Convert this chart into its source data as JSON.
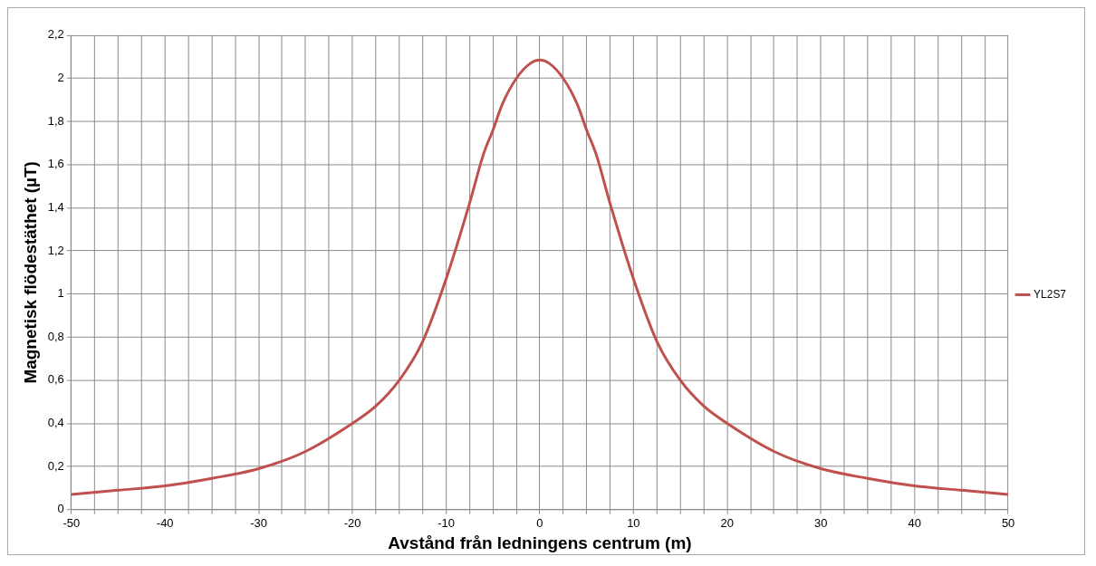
{
  "chart_data": {
    "type": "line",
    "xlabel": "Avstånd från ledningens centrum (m)",
    "ylabel": "Magnetisk flödestäthet (µT)",
    "series": [
      {
        "name": "YL2S7",
        "color": "#c0504d",
        "x": [
          -50,
          -45,
          -40,
          -35,
          -30,
          -25,
          -20,
          -17.5,
          -15,
          -12.5,
          -10,
          -7.5,
          -6,
          -5,
          -4,
          -2.5,
          -1,
          0,
          1,
          2.5,
          4,
          5,
          6,
          7.5,
          10,
          12.5,
          15,
          17.5,
          20,
          25,
          30,
          35,
          40,
          45,
          50
        ],
        "values": [
          0.07,
          0.09,
          0.11,
          0.145,
          0.19,
          0.27,
          0.4,
          0.48,
          0.6,
          0.78,
          1.07,
          1.42,
          1.65,
          1.76,
          1.88,
          2.0,
          2.07,
          2.085,
          2.07,
          2.0,
          1.88,
          1.76,
          1.65,
          1.42,
          1.07,
          0.78,
          0.6,
          0.48,
          0.4,
          0.27,
          0.19,
          0.145,
          0.11,
          0.09,
          0.07
        ]
      }
    ],
    "xlim": [
      -50,
      50
    ],
    "xticks": [
      -50,
      {
        "value": -47.5,
        "label": null
      },
      {
        "value": -45,
        "label": null
      },
      {
        "value": -42.5,
        "label": null
      },
      -40,
      {
        "value": -37.5,
        "label": null
      },
      {
        "value": -35,
        "label": null
      },
      {
        "value": -32.5,
        "label": null
      },
      -30,
      {
        "value": -27.5,
        "label": null
      },
      {
        "value": -25,
        "label": null
      },
      {
        "value": -22.5,
        "label": null
      },
      -20,
      {
        "value": -17.5,
        "label": null
      },
      {
        "value": -15,
        "label": null
      },
      {
        "value": -12.5,
        "label": null
      },
      -10,
      {
        "value": -7.5,
        "label": null
      },
      {
        "value": -5,
        "label": null
      },
      {
        "value": -2.5,
        "label": null
      },
      0,
      {
        "value": 2.5,
        "label": null
      },
      {
        "value": 5,
        "label": null
      },
      {
        "value": 7.5,
        "label": null
      },
      10,
      {
        "value": 12.5,
        "label": null
      },
      {
        "value": 15,
        "label": null
      },
      {
        "value": 17.5,
        "label": null
      },
      20,
      {
        "value": 22.5,
        "label": null
      },
      {
        "value": 25,
        "label": null
      },
      {
        "value": 27.5,
        "label": null
      },
      30,
      {
        "value": 32.5,
        "label": null
      },
      {
        "value": 35,
        "label": null
      },
      {
        "value": 37.5,
        "label": null
      },
      40,
      {
        "value": 42.5,
        "label": null
      },
      {
        "value": 45,
        "label": null
      },
      {
        "value": 47.5,
        "label": null
      },
      50
    ],
    "ylim": [
      0,
      2.2
    ],
    "yticks": [
      0,
      {
        "value": 0.2,
        "label": "0,2"
      },
      {
        "value": 0.4,
        "label": "0,4"
      },
      {
        "value": 0.6,
        "label": "0,6"
      },
      {
        "value": 0.8,
        "label": "0,8"
      },
      1,
      {
        "value": 1.2,
        "label": "1,2"
      },
      {
        "value": 1.4,
        "label": "1,4"
      },
      {
        "value": 1.6,
        "label": "1,6"
      },
      {
        "value": 1.8,
        "label": "1,8"
      },
      2,
      {
        "value": 2.2,
        "label": "2,2"
      }
    ],
    "grid": true,
    "legend": "right",
    "marker": "none",
    "line_style": "solid"
  }
}
